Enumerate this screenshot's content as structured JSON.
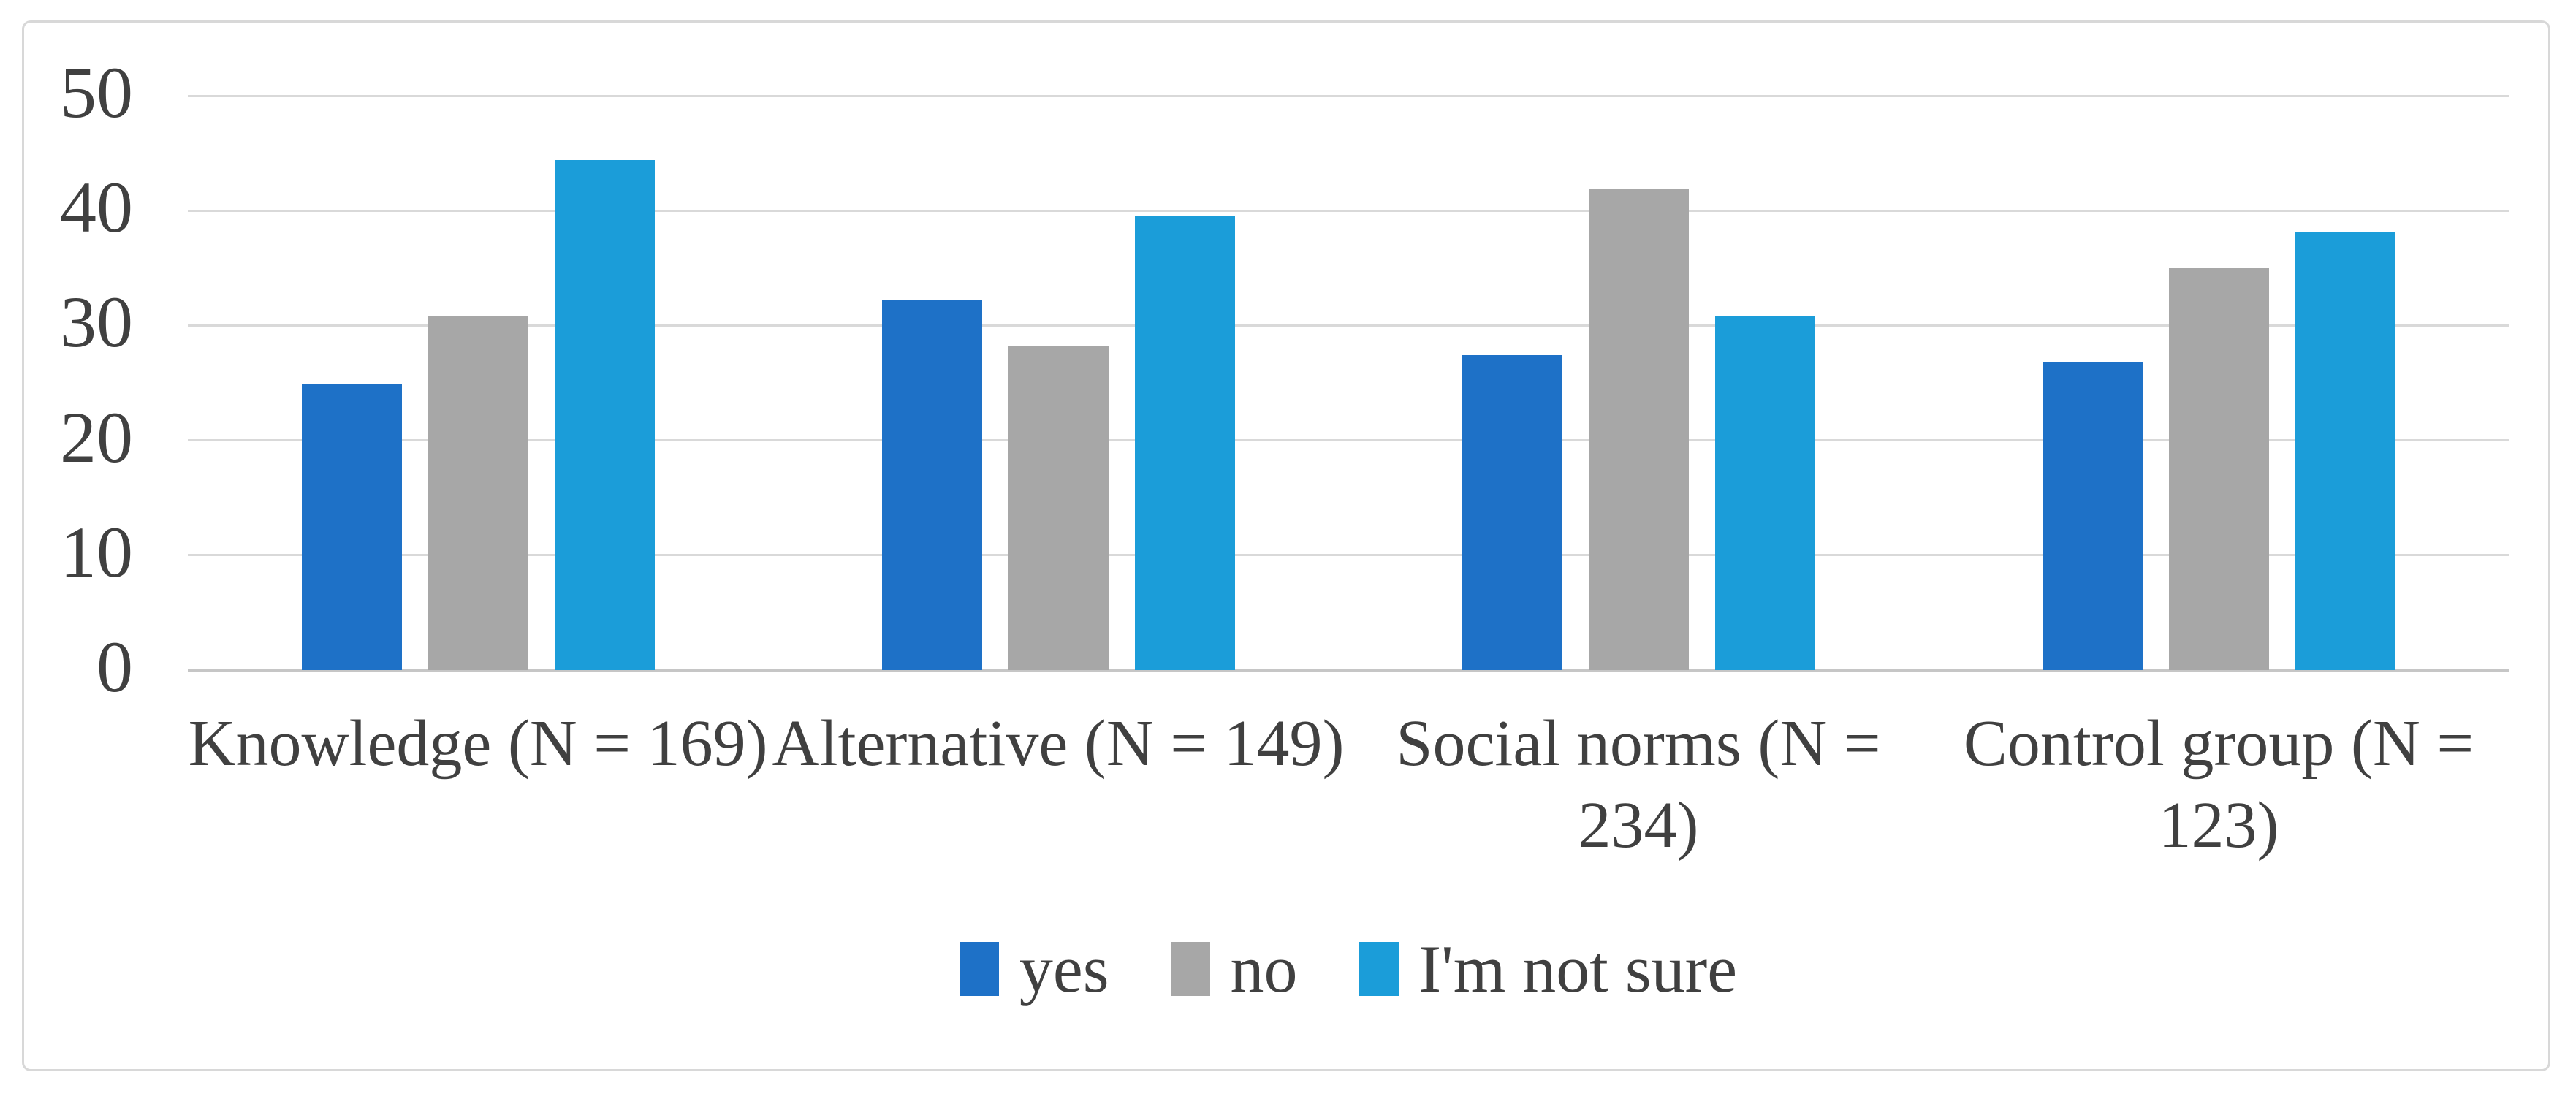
{
  "figure": {
    "background_color": "#ffffff",
    "border_color": "#d8d8d8",
    "text_color": "#404040",
    "gridline_color": "#d9d9d9",
    "baseline_color": "#c6c6c6"
  },
  "chart_data": {
    "type": "bar",
    "title": "",
    "xlabel": "",
    "ylabel": "",
    "categories": [
      "Knowledge (N = 169)",
      "Alternative (N = 149)",
      "Social norms (N = 234)",
      "Control group (N = 123)"
    ],
    "category_display_lines": [
      [
        "Knowledge (N = 169)"
      ],
      [
        "Alternative (N = 149)"
      ],
      [
        "Social norms (N =",
        "234)"
      ],
      [
        "Control group (N =",
        "123)"
      ]
    ],
    "series": [
      {
        "name": "yes",
        "color": "#1e71c7",
        "values": [
          24.9,
          32.2,
          27.4,
          26.8
        ]
      },
      {
        "name": "no",
        "color": "#a7a7a7",
        "values": [
          30.8,
          28.2,
          41.9,
          35.0
        ]
      },
      {
        "name": "I'm not sure",
        "color": "#1b9dd9",
        "values": [
          44.4,
          39.6,
          30.8,
          38.2
        ]
      }
    ],
    "y_axis": {
      "min": 0,
      "max": 50,
      "step": 10,
      "tick_labels": [
        "50",
        "40",
        "30",
        "20",
        "10",
        "0"
      ]
    },
    "grid": true,
    "legend_position": "bottom"
  }
}
